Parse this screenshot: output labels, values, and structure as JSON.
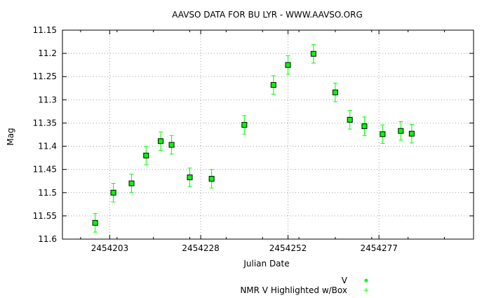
{
  "chart_data": {
    "type": "scatter",
    "title": "AAVSO DATA FOR BU LYR - WWW.AAVSO.ORG",
    "xlabel": "Julian Date",
    "ylabel": "Mag",
    "xlim": [
      2454190,
      2454303
    ],
    "ylim": [
      11.6,
      11.15
    ],
    "y_inverted": true,
    "grid": true,
    "x_ticks": [
      {
        "value": 2454203,
        "label": "2454203"
      },
      {
        "value": 2454228,
        "label": "2454228"
      },
      {
        "value": 2454252,
        "label": "2454252"
      },
      {
        "value": 2454277,
        "label": "2454277"
      }
    ],
    "y_ticks": [
      {
        "value": 11.15,
        "label": "11.15"
      },
      {
        "value": 11.2,
        "label": "11.2"
      },
      {
        "value": 11.25,
        "label": "11.25"
      },
      {
        "value": 11.3,
        "label": "11.3"
      },
      {
        "value": 11.35,
        "label": "11.35"
      },
      {
        "value": 11.4,
        "label": "11.4"
      },
      {
        "value": 11.45,
        "label": "11.45"
      },
      {
        "value": 11.5,
        "label": "11.5"
      },
      {
        "value": 11.55,
        "label": "11.55"
      },
      {
        "value": 11.6,
        "label": "11.6"
      }
    ],
    "legend_placement": "bottom-right",
    "legend": [
      {
        "label": "V",
        "marker": "dot"
      },
      {
        "label": "NMR V Highlighted w/Box",
        "marker": "plus"
      }
    ],
    "series": [
      {
        "name": "NMR V Highlighted w/Box",
        "color": "#00ff00",
        "box_color": "#000000",
        "error": 0.02,
        "points": [
          {
            "x": 2454199,
            "y": 11.565
          },
          {
            "x": 2454204,
            "y": 11.5
          },
          {
            "x": 2454209,
            "y": 11.48
          },
          {
            "x": 2454213,
            "y": 11.42
          },
          {
            "x": 2454217,
            "y": 11.389
          },
          {
            "x": 2454220,
            "y": 11.397
          },
          {
            "x": 2454225,
            "y": 11.467
          },
          {
            "x": 2454231,
            "y": 11.47
          },
          {
            "x": 2454240,
            "y": 11.354
          },
          {
            "x": 2454248,
            "y": 11.268
          },
          {
            "x": 2454252,
            "y": 11.225
          },
          {
            "x": 2454259,
            "y": 11.201
          },
          {
            "x": 2454265,
            "y": 11.284
          },
          {
            "x": 2454269,
            "y": 11.343
          },
          {
            "x": 2454273,
            "y": 11.357
          },
          {
            "x": 2454278,
            "y": 11.374
          },
          {
            "x": 2454283,
            "y": 11.367
          },
          {
            "x": 2454286,
            "y": 11.373
          }
        ]
      }
    ]
  }
}
